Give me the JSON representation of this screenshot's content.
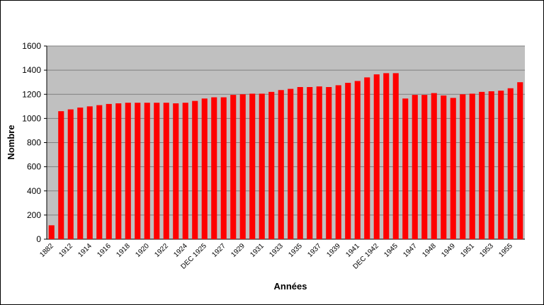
{
  "chart_data": {
    "type": "bar",
    "x_label": "Années",
    "y_label": "Nombre",
    "categories": [
      "1882",
      null,
      "1912",
      null,
      "1914",
      null,
      "1916",
      null,
      "1918",
      null,
      "1920",
      null,
      "1922",
      null,
      "1924",
      null,
      "DEC 1925",
      null,
      "1927",
      null,
      "1929",
      null,
      "1931",
      null,
      "1933",
      null,
      "1935",
      null,
      "1937",
      null,
      "1939",
      null,
      "1941",
      null,
      "DEC 1942",
      null,
      "1945",
      null,
      "1947",
      null,
      "1948",
      null,
      "1949",
      null,
      "1951",
      null,
      "1953",
      null,
      "1955",
      null
    ],
    "values": [
      115,
      1060,
      1075,
      1090,
      1100,
      1110,
      1120,
      1125,
      1130,
      1130,
      1130,
      1130,
      1130,
      1125,
      1130,
      1145,
      1165,
      1175,
      1175,
      1195,
      1200,
      1205,
      1205,
      1220,
      1235,
      1245,
      1260,
      1260,
      1265,
      1260,
      1275,
      1295,
      1310,
      1340,
      1365,
      1375,
      1375,
      1165,
      1195,
      1195,
      1210,
      1190,
      1170,
      1200,
      1205,
      1220,
      1225,
      1230,
      1250,
      1300
    ],
    "color": "#ff0000",
    "ylim": [
      0,
      1600
    ],
    "yticks": [
      0,
      200,
      400,
      600,
      800,
      1000,
      1200,
      1400,
      1600
    ],
    "grid": true
  }
}
